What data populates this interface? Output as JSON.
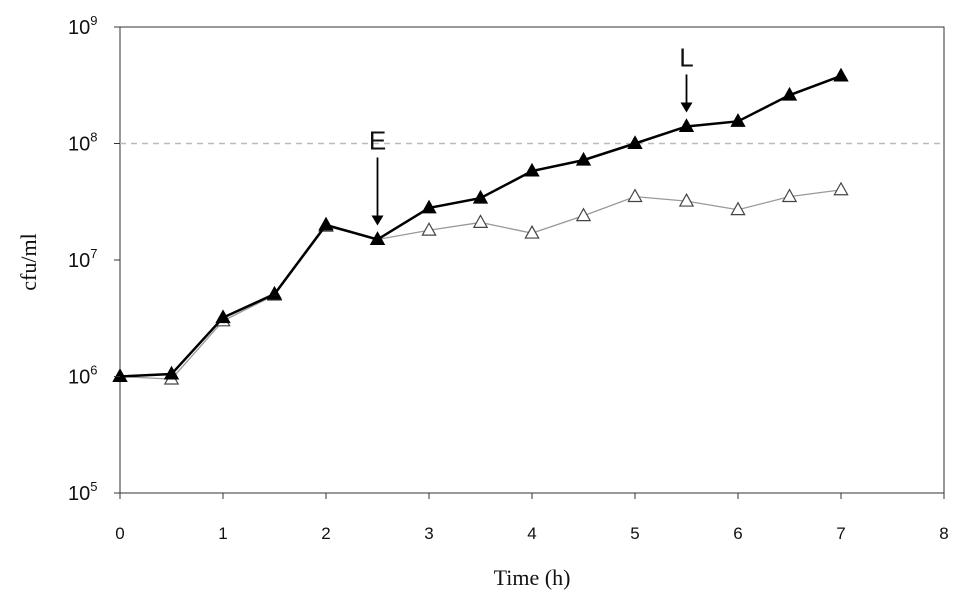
{
  "chart_data": {
    "type": "line",
    "title": "",
    "xlabel": "Time (h)",
    "ylabel": "cfu/ml",
    "xlim": [
      0,
      8
    ],
    "ylim": [
      100000,
      1000000000
    ],
    "yscale": "log",
    "x_ticks": [
      "0",
      "1",
      "2",
      "3",
      "4",
      "5",
      "6",
      "7",
      "8"
    ],
    "y_ticks": [
      {
        "base": "10",
        "exp": "5",
        "value": 100000
      },
      {
        "base": "10",
        "exp": "6",
        "value": 1000000
      },
      {
        "base": "10",
        "exp": "7",
        "value": 10000000
      },
      {
        "base": "10",
        "exp": "8",
        "value": 100000000
      },
      {
        "base": "10",
        "exp": "9",
        "value": 1000000000
      }
    ],
    "reference_line": {
      "y": 100000000,
      "style": "dashed"
    },
    "series": [
      {
        "marker": "filled-triangle",
        "color": "#000000",
        "x": [
          0,
          0.5,
          1,
          1.5,
          2,
          2.5,
          3,
          3.5,
          4,
          4.5,
          5,
          5.5,
          6,
          6.5,
          7
        ],
        "values": [
          1000000,
          1050000,
          3200000,
          5100000,
          20000000,
          15000000,
          28000000,
          34000000,
          58000000,
          72000000,
          100000000,
          140000000,
          155000000,
          260000000,
          380000000
        ]
      },
      {
        "marker": "open-triangle",
        "color": "#999999",
        "x": [
          0,
          0.5,
          1,
          1.5,
          2,
          2.5,
          3,
          3.5,
          4,
          4.5,
          5,
          5.5,
          6,
          6.5,
          7
        ],
        "values": [
          1000000,
          950000,
          3000000,
          5000000,
          19500000,
          15000000,
          18000000,
          21000000,
          17000000,
          24000000,
          35000000,
          32000000,
          27000000,
          35000000,
          40000000
        ]
      }
    ],
    "annotations": [
      {
        "text": "E",
        "x": 2.5,
        "y": 15000000
      },
      {
        "text": "L",
        "x": 5.5,
        "y": 140000000
      }
    ]
  }
}
